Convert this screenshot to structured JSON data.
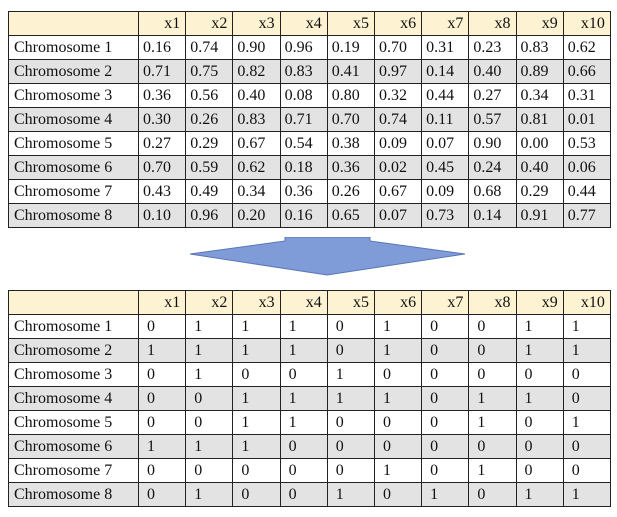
{
  "columns": [
    "x1",
    "x2",
    "x3",
    "x4",
    "x5",
    "x6",
    "x7",
    "x8",
    "x9",
    "x10"
  ],
  "continuous_table": {
    "rows": [
      {
        "label": "Chromosome 1",
        "values": [
          "0.16",
          "0.74",
          "0.90",
          "0.96",
          "0.19",
          "0.70",
          "0.31",
          "0.23",
          "0.83",
          "0.62"
        ]
      },
      {
        "label": "Chromosome 2",
        "values": [
          "0.71",
          "0.75",
          "0.82",
          "0.83",
          "0.41",
          "0.97",
          "0.14",
          "0.40",
          "0.89",
          "0.66"
        ]
      },
      {
        "label": "Chromosome 3",
        "values": [
          "0.36",
          "0.56",
          "0.40",
          "0.08",
          "0.80",
          "0.32",
          "0.44",
          "0.27",
          "0.34",
          "0.31"
        ]
      },
      {
        "label": "Chromosome 4",
        "values": [
          "0.30",
          "0.26",
          "0.83",
          "0.71",
          "0.70",
          "0.74",
          "0.11",
          "0.57",
          "0.81",
          "0.01"
        ]
      },
      {
        "label": "Chromosome 5",
        "values": [
          "0.27",
          "0.29",
          "0.67",
          "0.54",
          "0.38",
          "0.09",
          "0.07",
          "0.90",
          "0.00",
          "0.53"
        ]
      },
      {
        "label": "Chromosome 6",
        "values": [
          "0.70",
          "0.59",
          "0.62",
          "0.18",
          "0.36",
          "0.02",
          "0.45",
          "0.24",
          "0.40",
          "0.06"
        ]
      },
      {
        "label": "Chromosome 7",
        "values": [
          "0.43",
          "0.49",
          "0.34",
          "0.36",
          "0.26",
          "0.67",
          "0.09",
          "0.68",
          "0.29",
          "0.44"
        ]
      },
      {
        "label": "Chromosome 8",
        "values": [
          "0.10",
          "0.96",
          "0.20",
          "0.16",
          "0.65",
          "0.07",
          "0.73",
          "0.14",
          "0.91",
          "0.77"
        ]
      }
    ]
  },
  "binary_table": {
    "rows": [
      {
        "label": "Chromosome 1",
        "values": [
          "0",
          "1",
          "1",
          "1",
          "0",
          "1",
          "0",
          "0",
          "1",
          "1"
        ]
      },
      {
        "label": "Chromosome 2",
        "values": [
          "1",
          "1",
          "1",
          "1",
          "0",
          "1",
          "0",
          "0",
          "1",
          "1"
        ]
      },
      {
        "label": "Chromosome 3",
        "values": [
          "0",
          "1",
          "0",
          "0",
          "1",
          "0",
          "0",
          "0",
          "0",
          "0"
        ]
      },
      {
        "label": "Chromosome 4",
        "values": [
          "0",
          "0",
          "1",
          "1",
          "1",
          "1",
          "0",
          "1",
          "1",
          "0"
        ]
      },
      {
        "label": "Chromosome 5",
        "values": [
          "0",
          "0",
          "1",
          "1",
          "0",
          "0",
          "0",
          "1",
          "0",
          "1"
        ]
      },
      {
        "label": "Chromosome 6",
        "values": [
          "1",
          "1",
          "1",
          "0",
          "0",
          "0",
          "0",
          "0",
          "0",
          "0"
        ]
      },
      {
        "label": "Chromosome 7",
        "values": [
          "0",
          "0",
          "0",
          "0",
          "0",
          "1",
          "0",
          "1",
          "0",
          "0"
        ]
      },
      {
        "label": "Chromosome 8",
        "values": [
          "0",
          "1",
          "0",
          "0",
          "1",
          "0",
          "1",
          "0",
          "1",
          "1"
        ]
      }
    ]
  },
  "colors": {
    "header_fill": "#fdf3d2",
    "alt_row_fill": "#e3e3e3",
    "arrow_fill": "#7f9bd8",
    "arrow_stroke": "#5b76b8"
  }
}
